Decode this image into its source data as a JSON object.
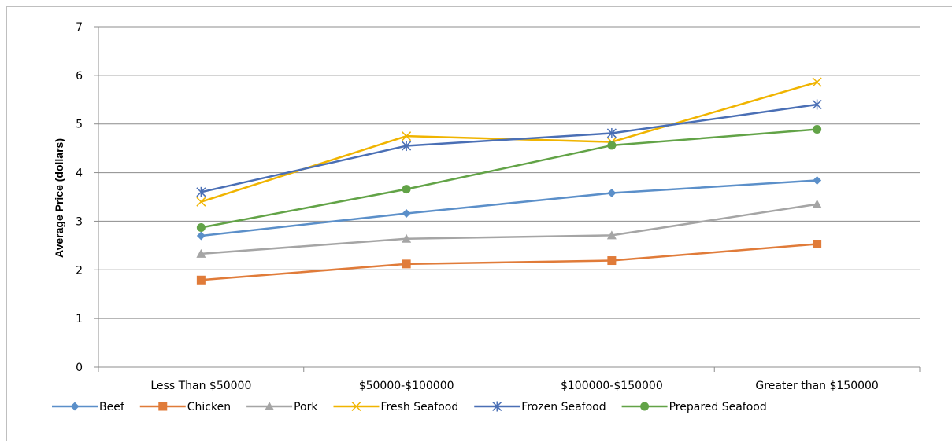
{
  "chart_data": {
    "type": "line",
    "title": "",
    "xlabel": "",
    "ylabel": "Average Price (dollars)",
    "categories": [
      "Less Than $50000",
      "$50000-$100000",
      "$100000-$150000",
      "Greater than $150000"
    ],
    "ylim": [
      0,
      7
    ],
    "yticks": [
      "0",
      "1",
      "2",
      "3",
      "4",
      "5",
      "6",
      "7"
    ],
    "grid": true,
    "legend_position": "bottom",
    "series": [
      {
        "name": "Beef",
        "values": [
          2.7,
          3.16,
          3.58,
          3.84
        ],
        "color": "#5b8fc9",
        "marker": "diamond"
      },
      {
        "name": "Chicken",
        "values": [
          1.79,
          2.12,
          2.19,
          2.53
        ],
        "color": "#e07b39",
        "marker": "square"
      },
      {
        "name": "Pork",
        "values": [
          2.33,
          2.64,
          2.71,
          3.35
        ],
        "color": "#a5a5a5",
        "marker": "triangle"
      },
      {
        "name": "Fresh Seafood",
        "values": [
          3.4,
          4.75,
          4.63,
          5.86
        ],
        "color": "#f0b400",
        "marker": "x"
      },
      {
        "name": "Frozen Seafood",
        "values": [
          3.6,
          4.55,
          4.81,
          5.4
        ],
        "color": "#4a6fb5",
        "marker": "star"
      },
      {
        "name": "Prepared Seafood",
        "values": [
          2.87,
          3.66,
          4.56,
          4.89
        ],
        "color": "#62a347",
        "marker": "circle"
      }
    ]
  }
}
